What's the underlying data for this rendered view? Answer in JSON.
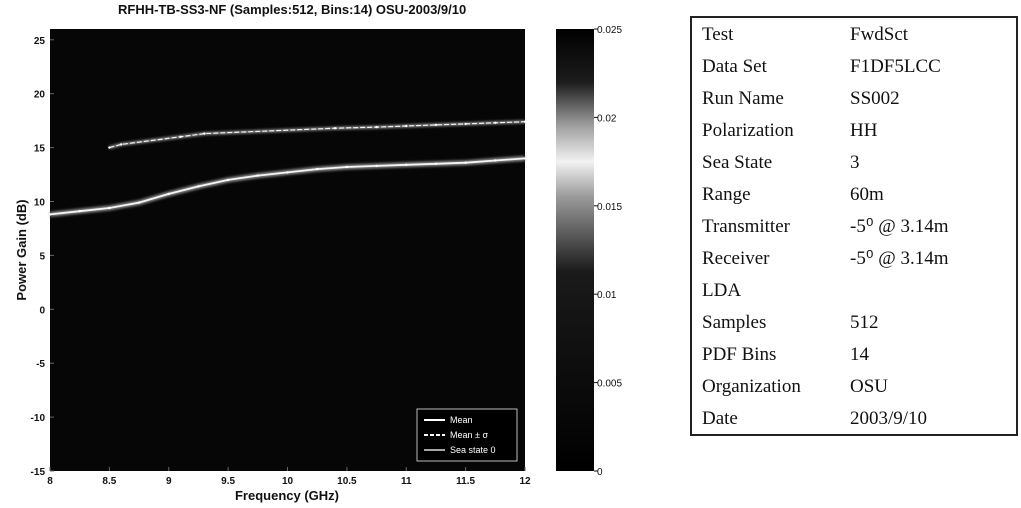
{
  "chart_data": {
    "type": "heatmap",
    "title": "RFHH-TB-SS3-NF (Samples:512, Bins:14) OSU-2003/9/10",
    "xlabel": "Frequency (GHz)",
    "ylabel": "Power Gain (dB)",
    "xlim": [
      8,
      12
    ],
    "ylim": [
      -15,
      26
    ],
    "xticks": [
      "8",
      "8.5",
      "9",
      "9.5",
      "10",
      "10.5",
      "11",
      "11.5",
      "12"
    ],
    "yticks": [
      "25",
      "20",
      "15",
      "10",
      "5",
      "0",
      "-5",
      "-10",
      "-15"
    ],
    "colorbar": {
      "range": [
        0,
        0.025
      ],
      "ticks": [
        "0.025",
        "0.02",
        "0.015",
        "0.01",
        "0.005",
        "0"
      ]
    },
    "series": [
      {
        "name": "Mean",
        "x": [
          8.0,
          8.25,
          8.5,
          8.75,
          9.0,
          9.25,
          9.5,
          9.75,
          10.0,
          10.25,
          10.5,
          10.75,
          11.0,
          11.25,
          11.5,
          11.75,
          12.0
        ],
        "y": [
          8.8,
          9.1,
          9.4,
          9.9,
          10.7,
          11.4,
          12.0,
          12.4,
          12.7,
          13.0,
          13.2,
          13.3,
          13.4,
          13.5,
          13.6,
          13.8,
          14.0
        ]
      },
      {
        "name": "Mean ± σ",
        "x": [
          8.5,
          8.6,
          9.1,
          9.3,
          10.4,
          10.75,
          11.0,
          11.25,
          11.5,
          11.75,
          12.0
        ],
        "y": [
          15.0,
          15.3,
          16.0,
          16.3,
          16.8,
          16.9,
          17.0,
          17.1,
          17.2,
          17.3,
          17.4
        ]
      },
      {
        "name": "Sea state 0",
        "x": [],
        "y": []
      }
    ],
    "legend_position": "bottom-right"
  },
  "info_table": [
    {
      "key": "Test",
      "value": "FwdSct"
    },
    {
      "key": "Data Set",
      "value": "F1DF5LCC"
    },
    {
      "key": "Run Name",
      "value": "SS002"
    },
    {
      "key": "Polarization",
      "value": "HH"
    },
    {
      "key": "Sea State",
      "value": "3"
    },
    {
      "key": "Range",
      "value": "60m"
    },
    {
      "key": "Transmitter",
      "value": "-5⁰ @ 3.14m"
    },
    {
      "key": "Receiver",
      "value": "-5⁰ @ 3.14m"
    },
    {
      "key": "LDA",
      "value": ""
    },
    {
      "key": "Samples",
      "value": "512"
    },
    {
      "key": "PDF Bins",
      "value": "14"
    },
    {
      "key": "Organization",
      "value": "OSU"
    },
    {
      "key": "Date",
      "value": "2003/9/10"
    }
  ]
}
